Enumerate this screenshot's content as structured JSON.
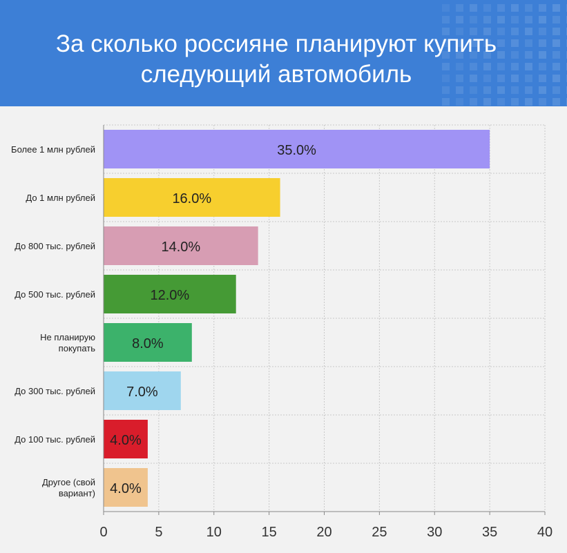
{
  "header": {
    "title_line1": "За сколько россияне планируют купить",
    "title_line2": "следующий автомобиль",
    "background_color": "#3d7fd6"
  },
  "chart_data": {
    "type": "bar",
    "orientation": "horizontal",
    "title": "За сколько россияне планируют купить следующий автомобиль",
    "xlabel": "",
    "ylabel": "",
    "xlim": [
      0,
      40
    ],
    "x_ticks": [
      0,
      5,
      10,
      15,
      20,
      25,
      30,
      35,
      40
    ],
    "grid": true,
    "value_suffix": "%",
    "categories": [
      [
        "Более 1 млн рублей"
      ],
      [
        "До 1 млн рублей"
      ],
      [
        "До 800 тыс. рублей"
      ],
      [
        "До 500 тыс. рублей"
      ],
      [
        "Не планирую",
        "покупать"
      ],
      [
        "До 300 тыс. рублей"
      ],
      [
        "До 100 тыс. рублей"
      ],
      [
        "Другое (свой",
        "вариант)"
      ]
    ],
    "values": [
      35.0,
      16.0,
      14.0,
      12.0,
      8.0,
      7.0,
      4.0,
      4.0
    ],
    "value_labels": [
      "35.0%",
      "16.0%",
      "14.0%",
      "12.0%",
      "8.0%",
      "7.0%",
      "4.0%",
      "4.0%"
    ],
    "colors": [
      "#a093f5",
      "#f7cf2e",
      "#d79db3",
      "#459a35",
      "#3cb26b",
      "#9fd6ee",
      "#d91d2b",
      "#f0c48e"
    ]
  }
}
